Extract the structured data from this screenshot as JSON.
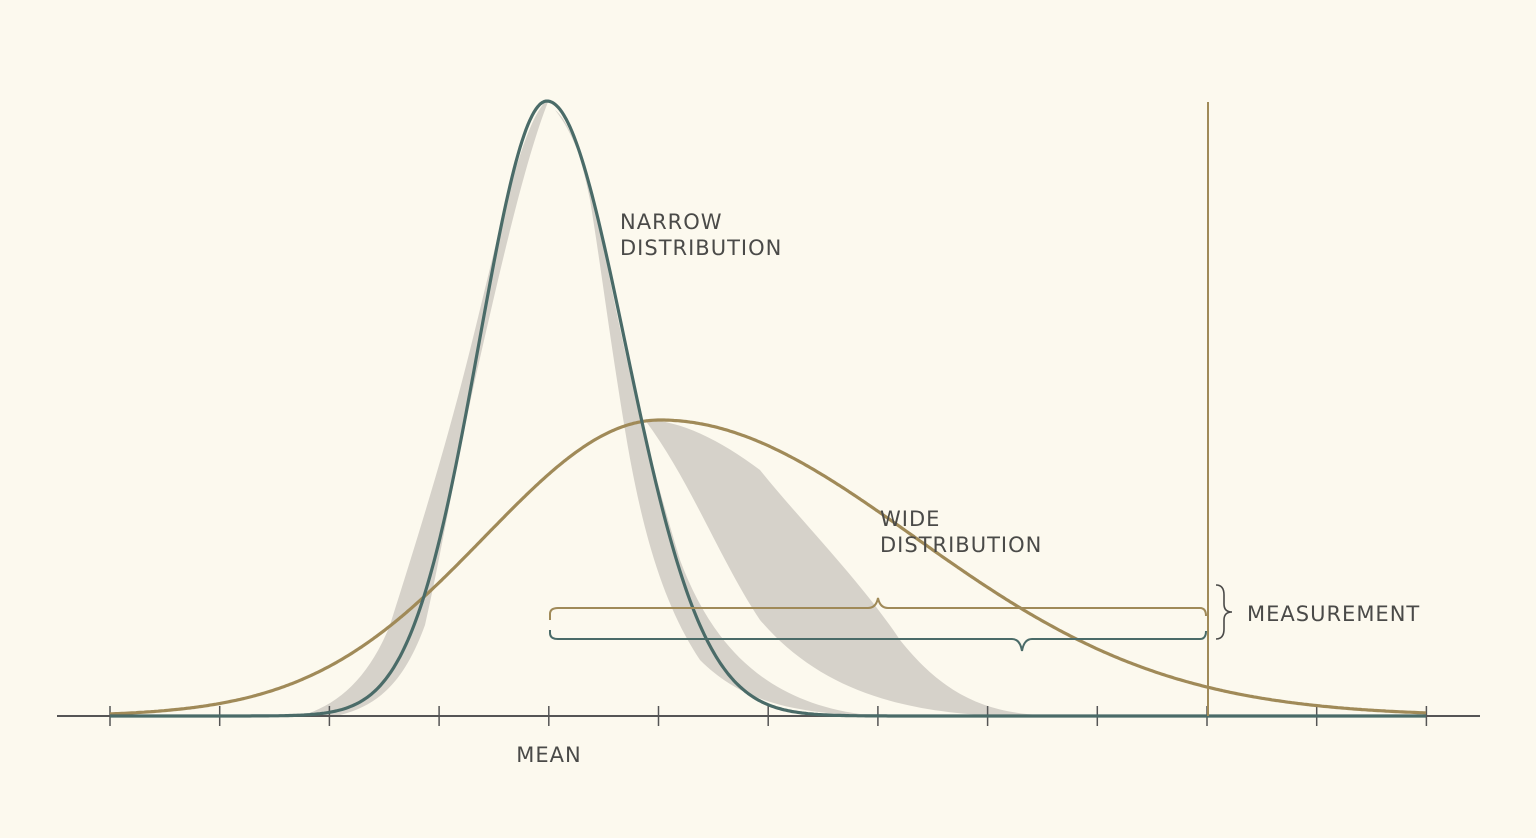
{
  "labels": {
    "narrow_line1": "NARROW",
    "narrow_line2": "DISTRIBUTION",
    "wide_line1": "WIDE",
    "wide_line2": "DISTRIBUTION",
    "mean": "MEAN",
    "measurement": "MEASUREMENT"
  },
  "colors": {
    "background": "#fcf9ee",
    "narrow_curve": "#4a6b68",
    "wide_curve": "#a08a58",
    "shaded_band": "#cfcbc3",
    "axis": "#555555",
    "text": "#4a4a48"
  }
}
